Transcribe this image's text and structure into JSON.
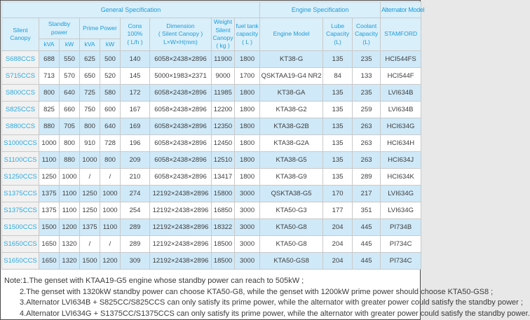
{
  "colors": {
    "header_bg": "#d9effa",
    "header_text": "#1c9cd8",
    "row_highlight_bg": "#cfe9f8",
    "model_col_bg": "#f1f1f1",
    "model_text": "#2aabe2",
    "data_text": "#3d3d3d",
    "grid_border": "#c9c9c9"
  },
  "table": {
    "bands": {
      "general_spec": "General Specification",
      "engine_spec": "Engine Specification",
      "alternator_model": "Alternator Model"
    },
    "header": {
      "silent_canopy": "Silent Canopy",
      "standby_power": "Standby power",
      "prime_power": "Prime Power",
      "kva_standby": "kVA",
      "kw_standby": "kW",
      "kva_prime": "kVA",
      "kw_prime": "kW",
      "cons": "Cons\n100%\n( L/h )",
      "dimension": "Dimension\n( Silent Canopy )\nL×W×H(mm)",
      "weight": "Weight\nSilent\nCanopy\n( kg )",
      "fuel_tank": "fuel tank\ncapacity\n( L )",
      "engine_model": "Engine Model",
      "lube": "Lube\nCapacity\n(L)",
      "coolant": "Coolant\nCapacity\n(L)",
      "stamford": "STAMFORD"
    },
    "rows": [
      {
        "model": "S688CCS",
        "cells": [
          "688",
          "550",
          "625",
          "500",
          "140",
          "6058×2438×2896",
          "11900",
          "1800",
          "KT38-G",
          "135",
          "235",
          "HCI544FS"
        ]
      },
      {
        "model": "S715CCS",
        "cells": [
          "713",
          "570",
          "650",
          "520",
          "145",
          "5000×1983×2371",
          "9000",
          "1700",
          "QSKTAA19-G4 NR2",
          "84",
          "133",
          "HCI544F"
        ]
      },
      {
        "model": "S800CCS",
        "cells": [
          "800",
          "640",
          "725",
          "580",
          "172",
          "6058×2438×2896",
          "11985",
          "1800",
          "KT38-GA",
          "135",
          "235",
          "LVI634B"
        ]
      },
      {
        "model": "S825CCS",
        "cells": [
          "825",
          "660",
          "750",
          "600",
          "167",
          "6058×2438×2896",
          "12200",
          "1800",
          "KTA38-G2",
          "135",
          "259",
          "LVI634B"
        ]
      },
      {
        "model": "S880CCS",
        "cells": [
          "880",
          "705",
          "800",
          "640",
          "169",
          "6058×2438×2896",
          "12350",
          "1800",
          "KTA38-G2B",
          "135",
          "263",
          "HCI634G"
        ]
      },
      {
        "model": "S1000CCS",
        "cells": [
          "1000",
          "800",
          "910",
          "728",
          "196",
          "6058×2438×2896",
          "12450",
          "1800",
          "KTA38-G2A",
          "135",
          "263",
          "HCI634H"
        ]
      },
      {
        "model": "S1100CCS",
        "cells": [
          "1100",
          "880",
          "1000",
          "800",
          "209",
          "6058×2438×2896",
          "12510",
          "1800",
          "KTA38-G5",
          "135",
          "263",
          "HCI634J"
        ]
      },
      {
        "model": "S1250CCS",
        "cells": [
          "1250",
          "1000",
          "/",
          "/",
          "210",
          "6058×2438×2896",
          "13417",
          "1800",
          "KTA38-G9",
          "135",
          "289",
          "HCI634K"
        ]
      },
      {
        "model": "S1375CCS",
        "cells": [
          "1375",
          "1100",
          "1250",
          "1000",
          "274",
          "12192×2438×2896",
          "15800",
          "3000",
          "QSKTA38-G5",
          "170",
          "217",
          "LVI634G"
        ]
      },
      {
        "model": "S1375CCS",
        "cells": [
          "1375",
          "1100",
          "1250",
          "1000",
          "254",
          "12192×2438×2896",
          "16850",
          "3000",
          "KTA50-G3",
          "177",
          "351",
          "LVI634G"
        ]
      },
      {
        "model": "S1500CCS",
        "cells": [
          "1500",
          "1200",
          "1375",
          "1100",
          "289",
          "12192×2438×2896",
          "18322",
          "3000",
          "KTA50-G8",
          "204",
          "445",
          "PI734B"
        ]
      },
      {
        "model": "S1650CCS",
        "cells": [
          "1650",
          "1320",
          "/",
          "/",
          "289",
          "12192×2438×2896",
          "18500",
          "3000",
          "KTA50-G8",
          "204",
          "445",
          "PI734C"
        ]
      },
      {
        "model": "S1650CCS",
        "cells": [
          "1650",
          "1320",
          "1500",
          "1200",
          "309",
          "12192×2438×2896",
          "18500",
          "3000",
          "KTA50-GS8",
          "204",
          "445",
          "PI734C"
        ]
      }
    ]
  },
  "notes": [
    "Note:1.The genset with KTAA19-G5 engine whose standby power can reach to 505kW ;",
    "2.The genset with 1320kW standby power can choose KTA50-G8, while the genset with 1200kW prime power should choose KTA50-GS8 ;",
    "3.Alternator LVI634B + S825CC/S825CCS can only satisfy its prime power, while the alternator with greater power could satisfy the standby power ;",
    "4.Alternator LVI634G + S1375CC/S1375CCS can only satisfy its prime power, while the alternator with greater power could satisfy the standby power."
  ]
}
